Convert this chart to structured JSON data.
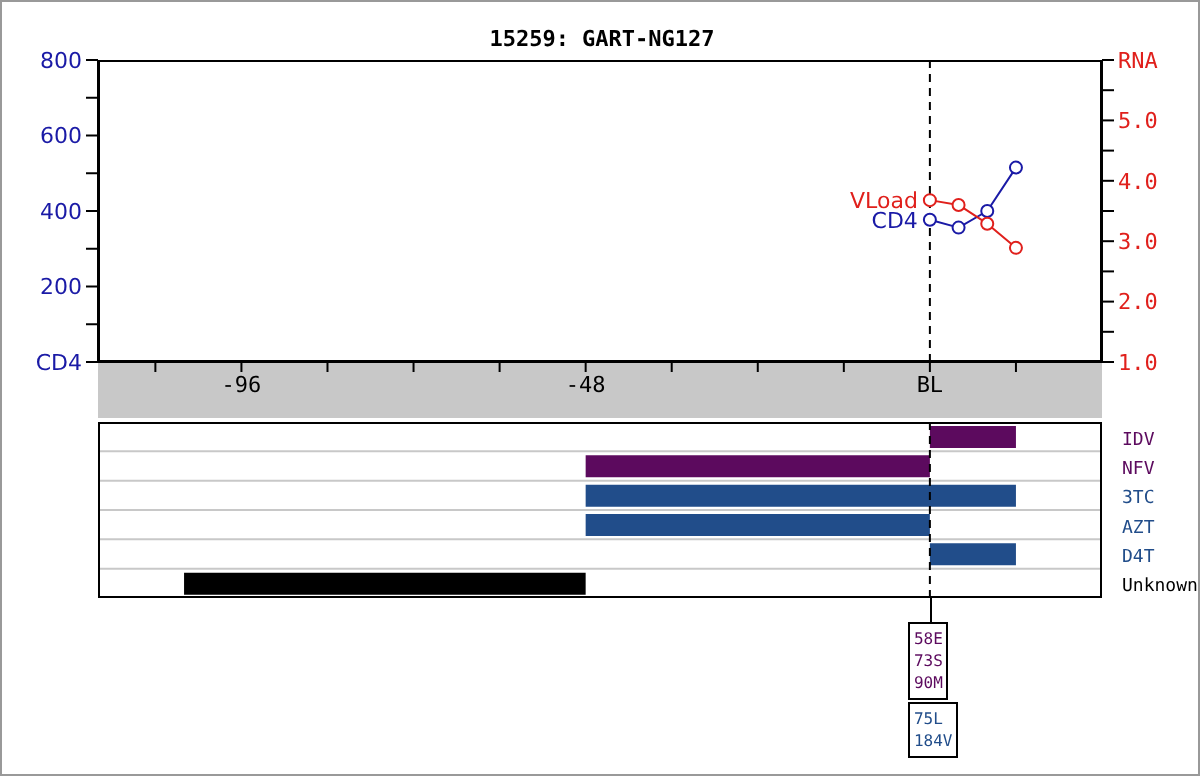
{
  "chart_data": [
    {
      "type": "line",
      "title": "15259: GART-NG127",
      "x": [
        0,
        4,
        8,
        12
      ],
      "xlim": [
        -116,
        24
      ],
      "xticks": [
        {
          "value": -108,
          "label": null
        },
        -96,
        {
          "value": -84,
          "label": null
        },
        {
          "value": -72,
          "label": null
        },
        {
          "value": -60,
          "label": null
        },
        -48,
        {
          "value": -36,
          "label": null
        },
        {
          "value": -24,
          "label": null
        },
        {
          "value": -12,
          "label": null
        },
        {
          "value": 0,
          "label": "BL"
        },
        {
          "value": 12,
          "label": null
        }
      ],
      "ylim": [
        0,
        800
      ],
      "yticks": [
        {
          "value": 0,
          "label": "CD4"
        },
        {
          "value": 100,
          "label": null
        },
        200,
        {
          "value": 300,
          "label": null
        },
        400,
        {
          "value": 500,
          "label": null
        },
        600,
        {
          "value": 700,
          "label": null
        },
        800
      ],
      "y2lim": [
        1,
        6
      ],
      "y2ticks": [
        {
          "value": 1,
          "label": "1.0"
        },
        {
          "value": 1.5,
          "label": null
        },
        {
          "value": 2,
          "label": "2.0"
        },
        {
          "value": 2.5,
          "label": null
        },
        {
          "value": 3,
          "label": "3.0"
        },
        {
          "value": 3.5,
          "label": null
        },
        {
          "value": 4,
          "label": "4.0"
        },
        {
          "value": 4.5,
          "label": null
        },
        {
          "value": 5,
          "label": "5.0"
        },
        {
          "value": 5.5,
          "label": null
        },
        {
          "value": 6,
          "label": "RNA"
        }
      ],
      "series": [
        {
          "name": "CD4",
          "color": "#1a1aa6",
          "values": [
            377,
            356,
            400,
            515
          ]
        },
        {
          "name": "VLoad",
          "color": "#e0201c",
          "values": [
            3.68,
            3.6,
            3.29,
            2.89
          ],
          "axis": "y2"
        }
      ],
      "marker": "circle",
      "line_style": "solid",
      "legend": false,
      "grid": false,
      "ref_lines": [
        {
          "axis": "x",
          "value": 0,
          "line_style": "dashed"
        }
      ]
    },
    {
      "type": "bar",
      "orientation": "horizontal",
      "categories": [
        "IDV",
        "NFV",
        "3TC",
        "AZT",
        "D4T",
        "Unknown"
      ],
      "base": [
        0,
        -48,
        -48,
        -48,
        0,
        -104
      ],
      "values": [
        12,
        48,
        60,
        48,
        12,
        56
      ],
      "colors": [
        "#5c0a5e",
        "#5c0a5e",
        "#214d8a",
        "#214d8a",
        "#214d8a",
        "#000000"
      ],
      "xlim": [
        -116,
        24
      ],
      "tick_labels": "y",
      "grid": "y",
      "ref_lines": [
        {
          "axis": "x",
          "value": 0,
          "line_style": "dashed"
        }
      ],
      "annotations": [
        "58E\n73S\n90M",
        "75L\n184V"
      ]
    }
  ]
}
